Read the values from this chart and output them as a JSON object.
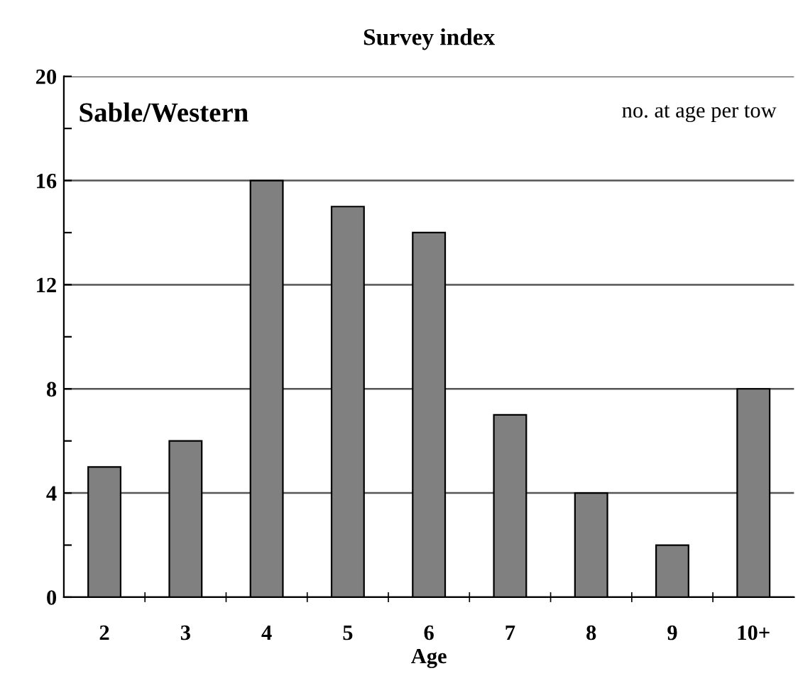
{
  "chart_data": {
    "type": "bar",
    "title": "Survey index",
    "xlabel": "Age",
    "annotations": [
      "Sable/Western",
      "no. at age per tow"
    ],
    "categories": [
      "2",
      "3",
      "4",
      "5",
      "6",
      "7",
      "8",
      "9",
      "10+"
    ],
    "values": [
      5,
      6,
      16,
      15,
      14,
      7,
      4,
      2,
      8
    ],
    "color": "#808080",
    "ylim": [
      0,
      20
    ],
    "yticks": [
      0,
      {
        "value": 2,
        "label": null
      },
      4,
      {
        "value": 6,
        "label": null
      },
      8,
      {
        "value": 10,
        "label": null
      },
      12,
      {
        "value": 14,
        "label": null
      },
      16,
      {
        "value": 18,
        "label": null
      },
      20
    ],
    "grid": "y",
    "legend": false
  }
}
